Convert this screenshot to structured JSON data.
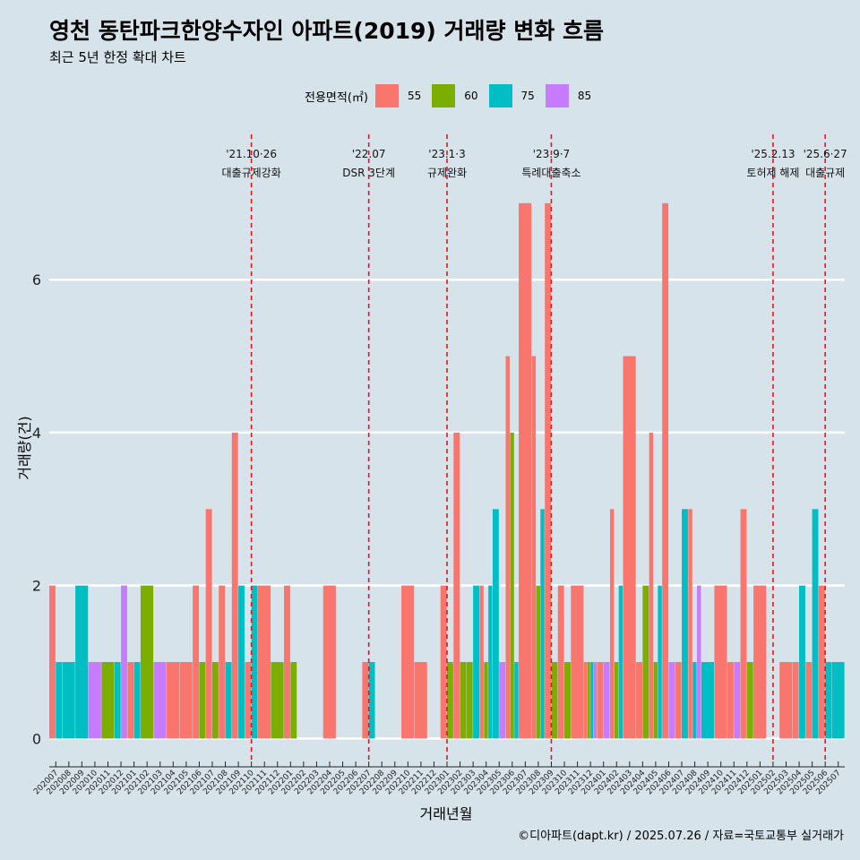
{
  "title": "영천 동탄파크한양수자인 아파트(2019) 거래량 변화 흐름",
  "subtitle": "최근 5년 한정 확대 차트",
  "caption": "©디아파트(dapt.kr) / 2025.07.26 / 자료=국토교통부 실거래가",
  "legend": {
    "title": "전용면적(㎡)",
    "items": [
      {
        "label": "55",
        "color": "#F8766D"
      },
      {
        "label": "60",
        "color": "#7CAE00"
      },
      {
        "label": "75",
        "color": "#00BFC4"
      },
      {
        "label": "85",
        "color": "#C77CFF"
      }
    ]
  },
  "chart_data": {
    "type": "bar",
    "xlabel": "거래년월",
    "ylabel": "거래량(건)",
    "y_ticks": [
      0,
      2,
      4,
      6
    ],
    "ylim": [
      -0.3,
      7.9
    ],
    "colors": {
      "55": "#F8766D",
      "60": "#7CAE00",
      "75": "#00BFC4",
      "85": "#C77CFF"
    },
    "months": [
      "202007",
      "202008",
      "202009",
      "202010",
      "202011",
      "202012",
      "202101",
      "202102",
      "202103",
      "202104",
      "202105",
      "202106",
      "202107",
      "202108",
      "202109",
      "202110",
      "202111",
      "202112",
      "202201",
      "202202",
      "202203",
      "202204",
      "202205",
      "202206",
      "202207",
      "202208",
      "202209",
      "202210",
      "202211",
      "202212",
      "202301",
      "202302",
      "202303",
      "202304",
      "202305",
      "202306",
      "202307",
      "202308",
      "202309",
      "202310",
      "202311",
      "202312",
      "202401",
      "202402",
      "202403",
      "202404",
      "202405",
      "202406",
      "202407",
      "202408",
      "202409",
      "202410",
      "202411",
      "202412",
      "202501",
      "202502",
      "202503",
      "202504",
      "202505",
      "202506",
      "202507"
    ],
    "bars": [
      {
        "month": "202007",
        "values": {
          "55": 2,
          "75": 1
        }
      },
      {
        "month": "202008",
        "values": {
          "75": 1
        }
      },
      {
        "month": "202009",
        "values": {
          "75": 2
        }
      },
      {
        "month": "202010",
        "values": {
          "85": 1
        }
      },
      {
        "month": "202011",
        "values": {
          "60": 1
        }
      },
      {
        "month": "202012",
        "values": {
          "75": 1,
          "85": 2
        }
      },
      {
        "month": "202101",
        "values": {
          "55": 1,
          "75": 1
        }
      },
      {
        "month": "202102",
        "values": {
          "60": 2
        }
      },
      {
        "month": "202103",
        "values": {
          "85": 1
        }
      },
      {
        "month": "202104",
        "values": {
          "55": 1
        }
      },
      {
        "month": "202105",
        "values": {
          "55": 1
        }
      },
      {
        "month": "202106",
        "values": {
          "55": 2,
          "60": 1
        }
      },
      {
        "month": "202107",
        "values": {
          "55": 3,
          "60": 1
        }
      },
      {
        "month": "202108",
        "values": {
          "55": 2,
          "75": 1
        }
      },
      {
        "month": "202109",
        "values": {
          "55": 4,
          "75": 2
        }
      },
      {
        "month": "202110",
        "values": {
          "55": 1,
          "75": 2
        }
      },
      {
        "month": "202111",
        "values": {
          "55": 2
        }
      },
      {
        "month": "202112",
        "values": {
          "60": 1
        }
      },
      {
        "month": "202201",
        "values": {
          "55": 2,
          "60": 1
        }
      },
      {
        "month": "202204",
        "values": {
          "55": 2
        }
      },
      {
        "month": "202207",
        "values": {
          "55": 1,
          "75": 1
        }
      },
      {
        "month": "202210",
        "values": {
          "55": 2
        }
      },
      {
        "month": "202211",
        "values": {
          "55": 1
        }
      },
      {
        "month": "202301",
        "values": {
          "55": 2,
          "60": 1
        }
      },
      {
        "month": "202302",
        "values": {
          "55": 4,
          "60": 1
        }
      },
      {
        "month": "202303",
        "values": {
          "75": 2,
          "60": 1
        }
      },
      {
        "month": "202304",
        "values": {
          "55": 2,
          "60": 1,
          "75": 2
        }
      },
      {
        "month": "202305",
        "values": {
          "75": 3,
          "85": 1
        }
      },
      {
        "month": "202306",
        "values": {
          "55": 5,
          "60": 4,
          "75": 1
        }
      },
      {
        "month": "202307",
        "values": {
          "55": 7
        }
      },
      {
        "month": "202308",
        "values": {
          "55": 5,
          "60": 2,
          "75": 3
        }
      },
      {
        "month": "202309",
        "values": {
          "55": 7,
          "60": 1
        }
      },
      {
        "month": "202310",
        "values": {
          "55": 2,
          "60": 1
        }
      },
      {
        "month": "202311",
        "values": {
          "55": 2
        }
      },
      {
        "month": "202312",
        "values": {
          "55": 1,
          "60": 1,
          "75": 1,
          "85": 1
        }
      },
      {
        "month": "202401",
        "values": {
          "55": 1,
          "85": 1
        }
      },
      {
        "month": "202402",
        "values": {
          "55": 3,
          "60": 1,
          "75": 2
        }
      },
      {
        "month": "202403",
        "values": {
          "55": 5
        }
      },
      {
        "month": "202404",
        "values": {
          "55": 1,
          "60": 2
        }
      },
      {
        "month": "202405",
        "values": {
          "55": 4,
          "60": 1,
          "75": 2
        }
      },
      {
        "month": "202406",
        "values": {
          "55": 7,
          "85": 1
        }
      },
      {
        "month": "202407",
        "values": {
          "55": 1,
          "75": 3
        }
      },
      {
        "month": "202408",
        "values": {
          "55": 3,
          "75": 1,
          "85": 2
        }
      },
      {
        "month": "202409",
        "values": {
          "75": 1
        }
      },
      {
        "month": "202410",
        "values": {
          "55": 2
        }
      },
      {
        "month": "202411",
        "values": {
          "55": 1,
          "85": 1
        }
      },
      {
        "month": "202412",
        "values": {
          "55": 3,
          "60": 1
        }
      },
      {
        "month": "202501",
        "values": {
          "55": 2
        }
      },
      {
        "month": "202503",
        "values": {
          "55": 1
        }
      },
      {
        "month": "202504",
        "values": {
          "55": 1,
          "75": 2
        }
      },
      {
        "month": "202505",
        "values": {
          "55": 1,
          "75": 3
        }
      },
      {
        "month": "202506",
        "values": {
          "55": 2,
          "75": 1
        }
      },
      {
        "month": "202507",
        "values": {
          "75": 1
        }
      }
    ],
    "annotations": [
      {
        "month": "202110",
        "date": "'21.10·26",
        "label": "대출규제강화"
      },
      {
        "month": "202207",
        "date": "'22.07",
        "label": "DSR 3단계"
      },
      {
        "month": "202301",
        "date": "'23.1·3",
        "label": "규제완화"
      },
      {
        "month": "202309",
        "date": "'23.9·7",
        "label": "특례대출축소"
      },
      {
        "month": "202502",
        "date": "'25.2.13",
        "label": "토허제 해제"
      },
      {
        "month": "202506",
        "date": "'25.6·27",
        "label": "대출규제"
      }
    ]
  }
}
